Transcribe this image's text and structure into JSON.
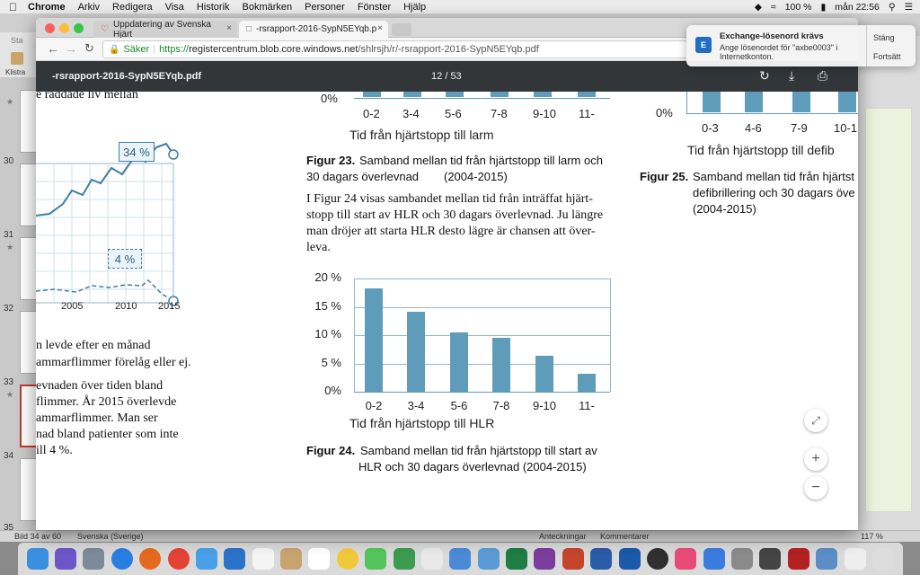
{
  "menubar": {
    "app": "Chrome",
    "items": [
      "Arkiv",
      "Redigera",
      "Visa",
      "Historik",
      "Bokmärken",
      "Personer",
      "Fönster",
      "Hjälp"
    ],
    "battery": "100 %",
    "clock": "mån 22:56"
  },
  "tabs": [
    {
      "label": "Uppdatering av Svenska Hjärt"
    },
    {
      "label": "-rsrapport-2016-SypN5EYqb.p"
    }
  ],
  "addressbar": {
    "secure_label": "Säker",
    "url_scheme": "https://",
    "url_host": "registercentrum.blob.core.windows.net",
    "url_path": "/shlrsjh/r/-rsrapport-2016-SypN5EYqb.pdf"
  },
  "pdf_toolbar": {
    "filename": "-rsrapport-2016-SypN5EYqb.pdf",
    "current_page": "12",
    "separator": "/",
    "total_pages": "53"
  },
  "notification": {
    "title": "Exchange-lösenord krävs",
    "body": "Ange lösenordet för \"axbe0003\" i Internetkonton.",
    "close_label": "Stäng",
    "settings_label": "Fortsätt"
  },
  "background_app": {
    "toolbar_top_label": "Sta",
    "toolbar_label": "Klistra",
    "slide_numbers": [
      "30",
      "31",
      "32",
      "33",
      "34",
      "35"
    ],
    "status_slide": "Bild 34 av 60",
    "status_lang": "Svenska (Sverige)",
    "status_notes": "Anteckningar",
    "status_comments": "Kommentarer",
    "status_zoom": "117 %"
  },
  "pdf_page": {
    "left_col": {
      "top_line": "e räddade liv mellan",
      "callout_top": "34 %",
      "callout_bottom": "4 %",
      "x_ticks": [
        "2005",
        "2010",
        "2015"
      ],
      "lines": [
        "n levde efter en månad",
        "ammarflimmer förelåg eller ej.",
        "evnaden över tiden bland",
        "flimmer. År 2015 överlevde",
        "ammarflimmer. Man ser",
        "nad bland patienter som inte",
        "ill 4 %."
      ]
    },
    "fig23": {
      "y_tick_bottom": "0%",
      "x_ticks": [
        "0-2",
        "3-4",
        "5-6",
        "7-8",
        "9-10",
        "11-"
      ],
      "xlabel": "Tid från hjärtstopp till larm",
      "caption_label": "Figur 23.",
      "caption_line1": "Samband mellan tid från hjärtstopp till larm och",
      "caption_line2a": "30 dagars överlevnad",
      "caption_line2b": "(2004-2015)"
    },
    "body_text": [
      "I Figur 24 visas sambandet mellan tid från inträffat hjärt-",
      "stopp till start av HLR och 30 dagars överlevnad. Ju längre",
      "man dröjer att starta HLR desto lägre är chansen att över-",
      "leva."
    ],
    "fig24": {
      "caption_label": "Figur 24.",
      "caption_line1": "Samband mellan tid från hjärtstopp till start av",
      "caption_line2": "HLR och 30 dagars överlevnad (2004-2015)"
    },
    "fig25": {
      "y_tick_bottom": "0%",
      "x_ticks": [
        "0-3",
        "4-6",
        "7-9",
        "10-1"
      ],
      "xlabel": "Tid från hjärtstopp till defib",
      "caption_label": "Figur 25.",
      "caption_line1": "Samband mellan tid från hjärtst",
      "caption_line2": "defibrillering och 30 dagars öve",
      "caption_line3": "(2004-2015)"
    }
  },
  "chart_data": {
    "type": "bar",
    "categories": [
      "0-2",
      "3-4",
      "5-6",
      "7-8",
      "9-10",
      "11-"
    ],
    "values": [
      18.2,
      14.2,
      10.5,
      9.5,
      6.3,
      3.1
    ],
    "title": "",
    "xlabel": "Tid från hjärtstopp till HLR",
    "ylabel": "",
    "ylim": [
      0,
      20
    ],
    "y_ticks": [
      "0%",
      "5 %",
      "10 %",
      "15 %",
      "20 %"
    ],
    "y_tick_values": [
      0,
      5,
      10,
      15,
      20
    ],
    "grid": true,
    "bar_color": "#5f9cba"
  },
  "colors": {
    "accent": "#5f9cba",
    "pdf_toolbar": "#323639",
    "secure_green": "#1a8a30"
  }
}
